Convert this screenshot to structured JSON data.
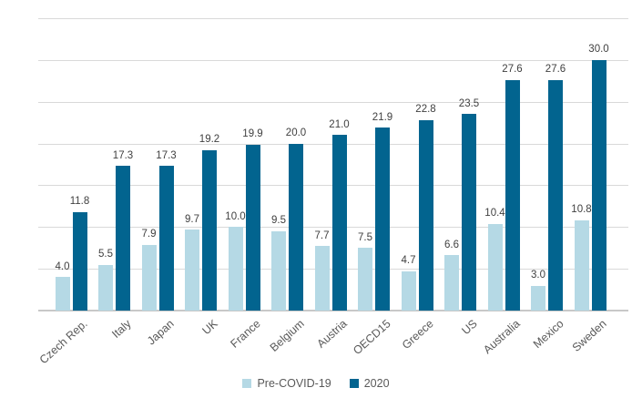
{
  "chart_data": {
    "type": "bar",
    "title": "",
    "categories": [
      "Czech Rep.",
      "Italy",
      "Japan",
      "UK",
      "France",
      "Belgium",
      "Austria",
      "OECD15",
      "Greece",
      "US",
      "Australia",
      "Mexico",
      "Sweden"
    ],
    "series": [
      {
        "name": "Pre-COVID-19",
        "color": "#b5d9e5",
        "values": [
          4.0,
          5.5,
          7.9,
          9.7,
          10.0,
          9.5,
          7.7,
          7.5,
          4.7,
          6.6,
          10.4,
          3.0,
          10.8
        ]
      },
      {
        "name": "2020",
        "color": "#02648f",
        "values": [
          11.8,
          17.3,
          17.3,
          19.2,
          19.9,
          20.0,
          21.0,
          21.9,
          22.8,
          23.5,
          27.6,
          27.6,
          30.0
        ]
      }
    ],
    "xlabel": "",
    "ylabel": "",
    "ylim": [
      0,
      35
    ],
    "yticks": [
      0,
      5,
      10,
      15,
      20,
      25,
      30,
      35
    ],
    "grid": true,
    "legend_position": "bottom",
    "value_labels": true,
    "value_label_decimals": 1
  },
  "style": {
    "gridline_color": "#d9d9d9",
    "baseline_color": "#c8c8c8",
    "axis_text_color": "#595959",
    "value_label_color": "#3f3f3f"
  }
}
